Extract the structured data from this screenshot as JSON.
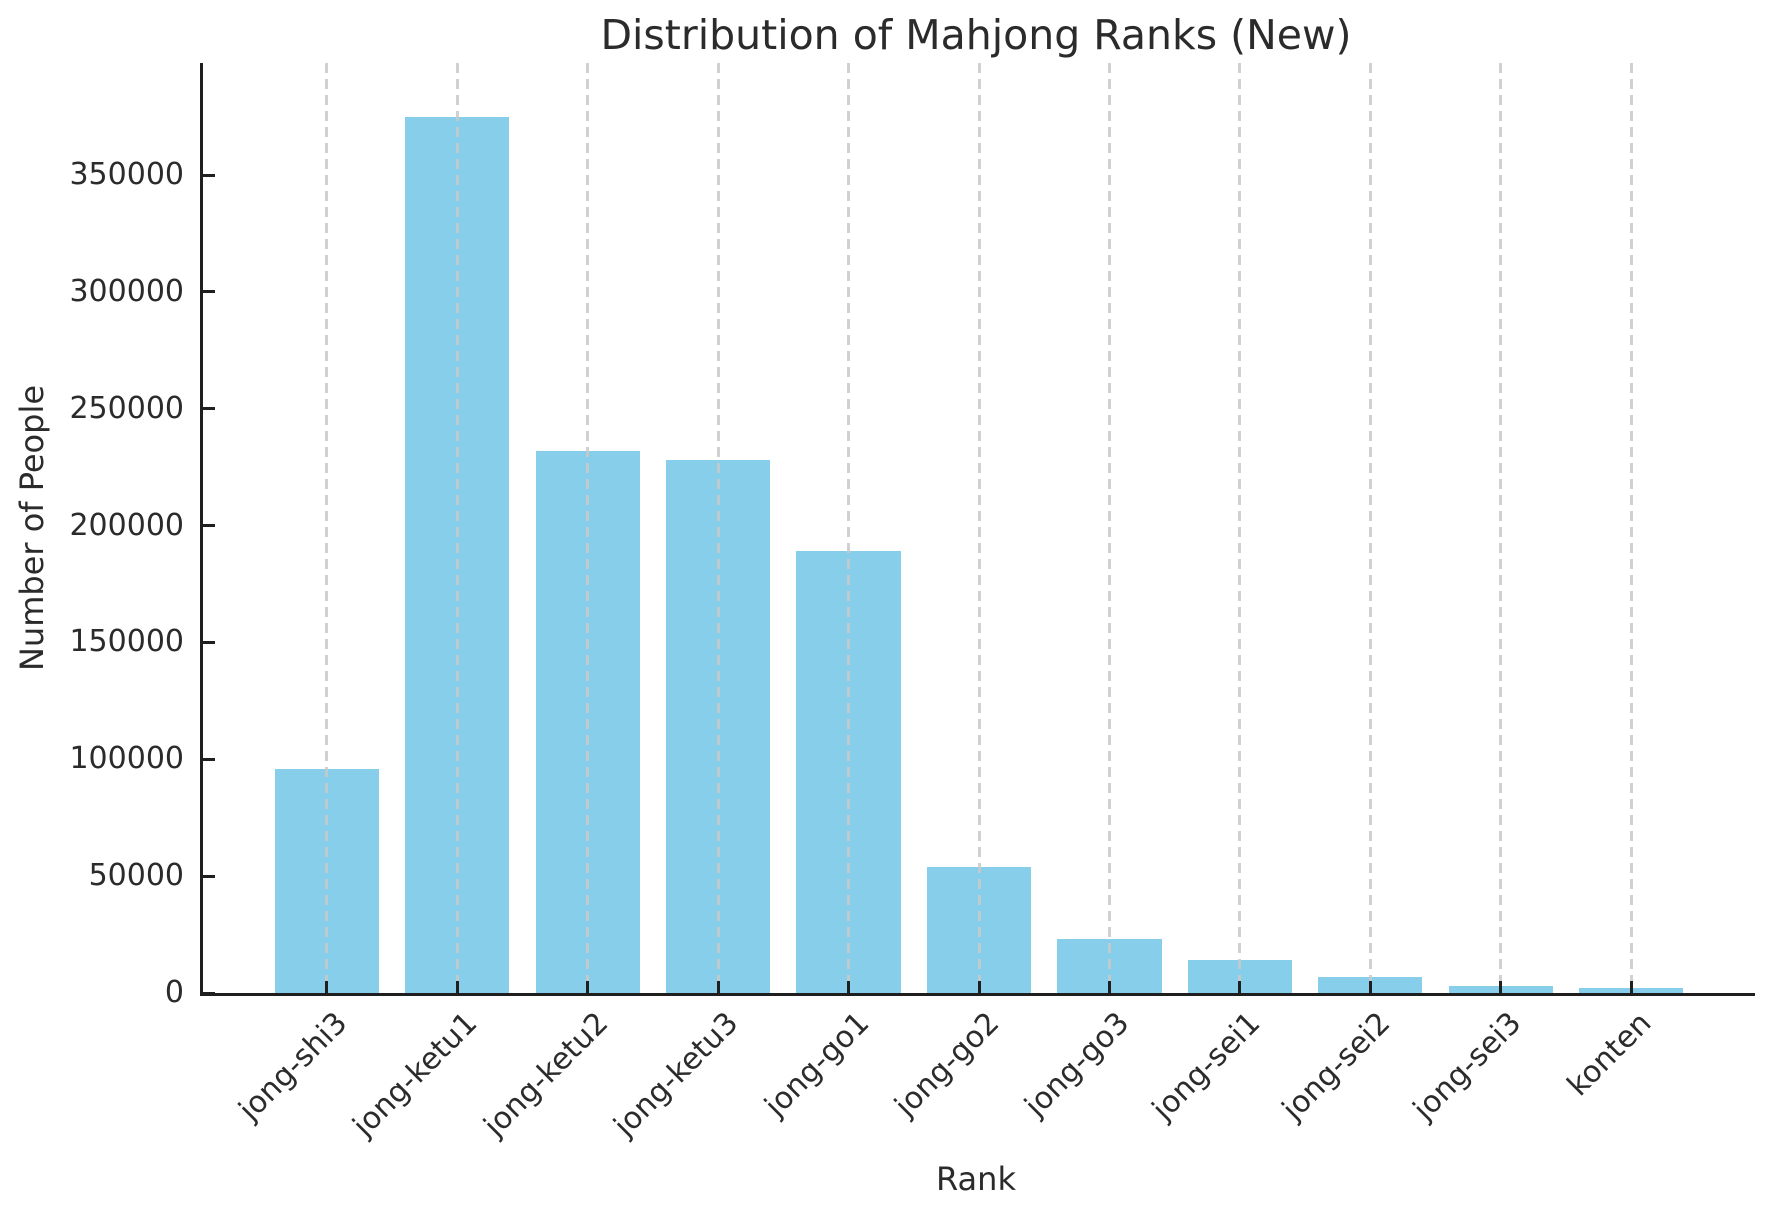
{
  "chart_data": {
    "type": "bar",
    "title": "Distribution of Mahjong Ranks (New)",
    "xlabel": "Rank",
    "ylabel": "Number of People",
    "categories": [
      "jong-shi3",
      "jong-ketu1",
      "jong-ketu2",
      "jong-ketu3",
      "jong-go1",
      "jong-go2",
      "jong-go3",
      "jong-sei1",
      "jong-sei2",
      "jong-sei3",
      "konten"
    ],
    "values": [
      96000,
      375000,
      232000,
      228000,
      189000,
      54000,
      23000,
      14000,
      7000,
      3200,
      2000
    ],
    "ylim": [
      0,
      398000
    ],
    "yticks": [
      0,
      50000,
      100000,
      150000,
      200000,
      250000,
      300000,
      350000
    ],
    "bar_color": "#87CEEB",
    "grid": "vertical-dashed",
    "grid_color": "#c9c9c9",
    "spine_color": "#1f1f1f",
    "text_color": "#2b2b2b",
    "legend": "none",
    "tick_direction": "in",
    "x_label_rotation_deg": 45
  }
}
